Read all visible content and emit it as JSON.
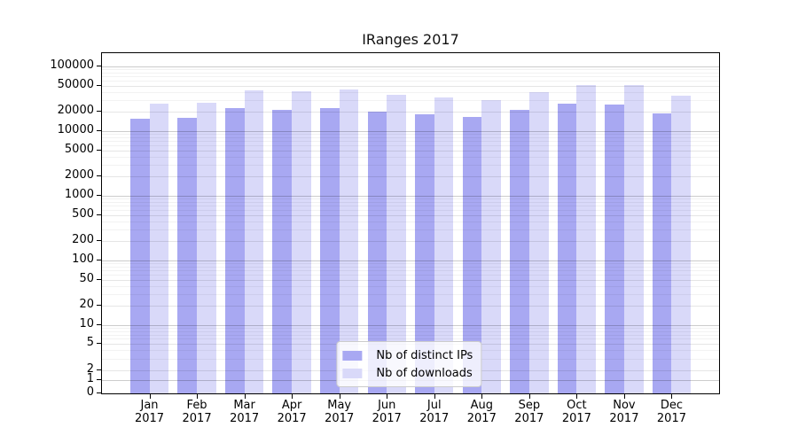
{
  "chart_data": {
    "type": "bar",
    "title": "IRanges 2017",
    "categories": [
      "Jan 2017",
      "Feb 2017",
      "Mar 2017",
      "Apr 2017",
      "May 2017",
      "Jun 2017",
      "Jul 2017",
      "Aug 2017",
      "Sep 2017",
      "Oct 2017",
      "Nov 2017",
      "Dec 2017"
    ],
    "series": [
      {
        "name": "Nb of distinct IPs",
        "color": "#a8a8f2",
        "values": [
          15400,
          16200,
          22900,
          21300,
          22900,
          20200,
          18400,
          16700,
          21300,
          26300,
          26000,
          19000
        ]
      },
      {
        "name": "Nb of downloads",
        "color": "#d9d9f9",
        "values": [
          26300,
          27700,
          42500,
          40500,
          43500,
          35700,
          32400,
          30200,
          40100,
          50400,
          51100,
          35300
        ]
      }
    ],
    "yticks": [
      100000,
      50000,
      20000,
      10000,
      5000,
      2000,
      1000,
      500,
      200,
      100,
      50,
      20,
      10,
      5,
      2,
      1,
      0
    ],
    "ylim": [
      0,
      100000
    ],
    "yscale": "log-with-zero",
    "xlabel": "",
    "ylabel": "",
    "grid": "horizontal",
    "legend_position": "lower center"
  }
}
